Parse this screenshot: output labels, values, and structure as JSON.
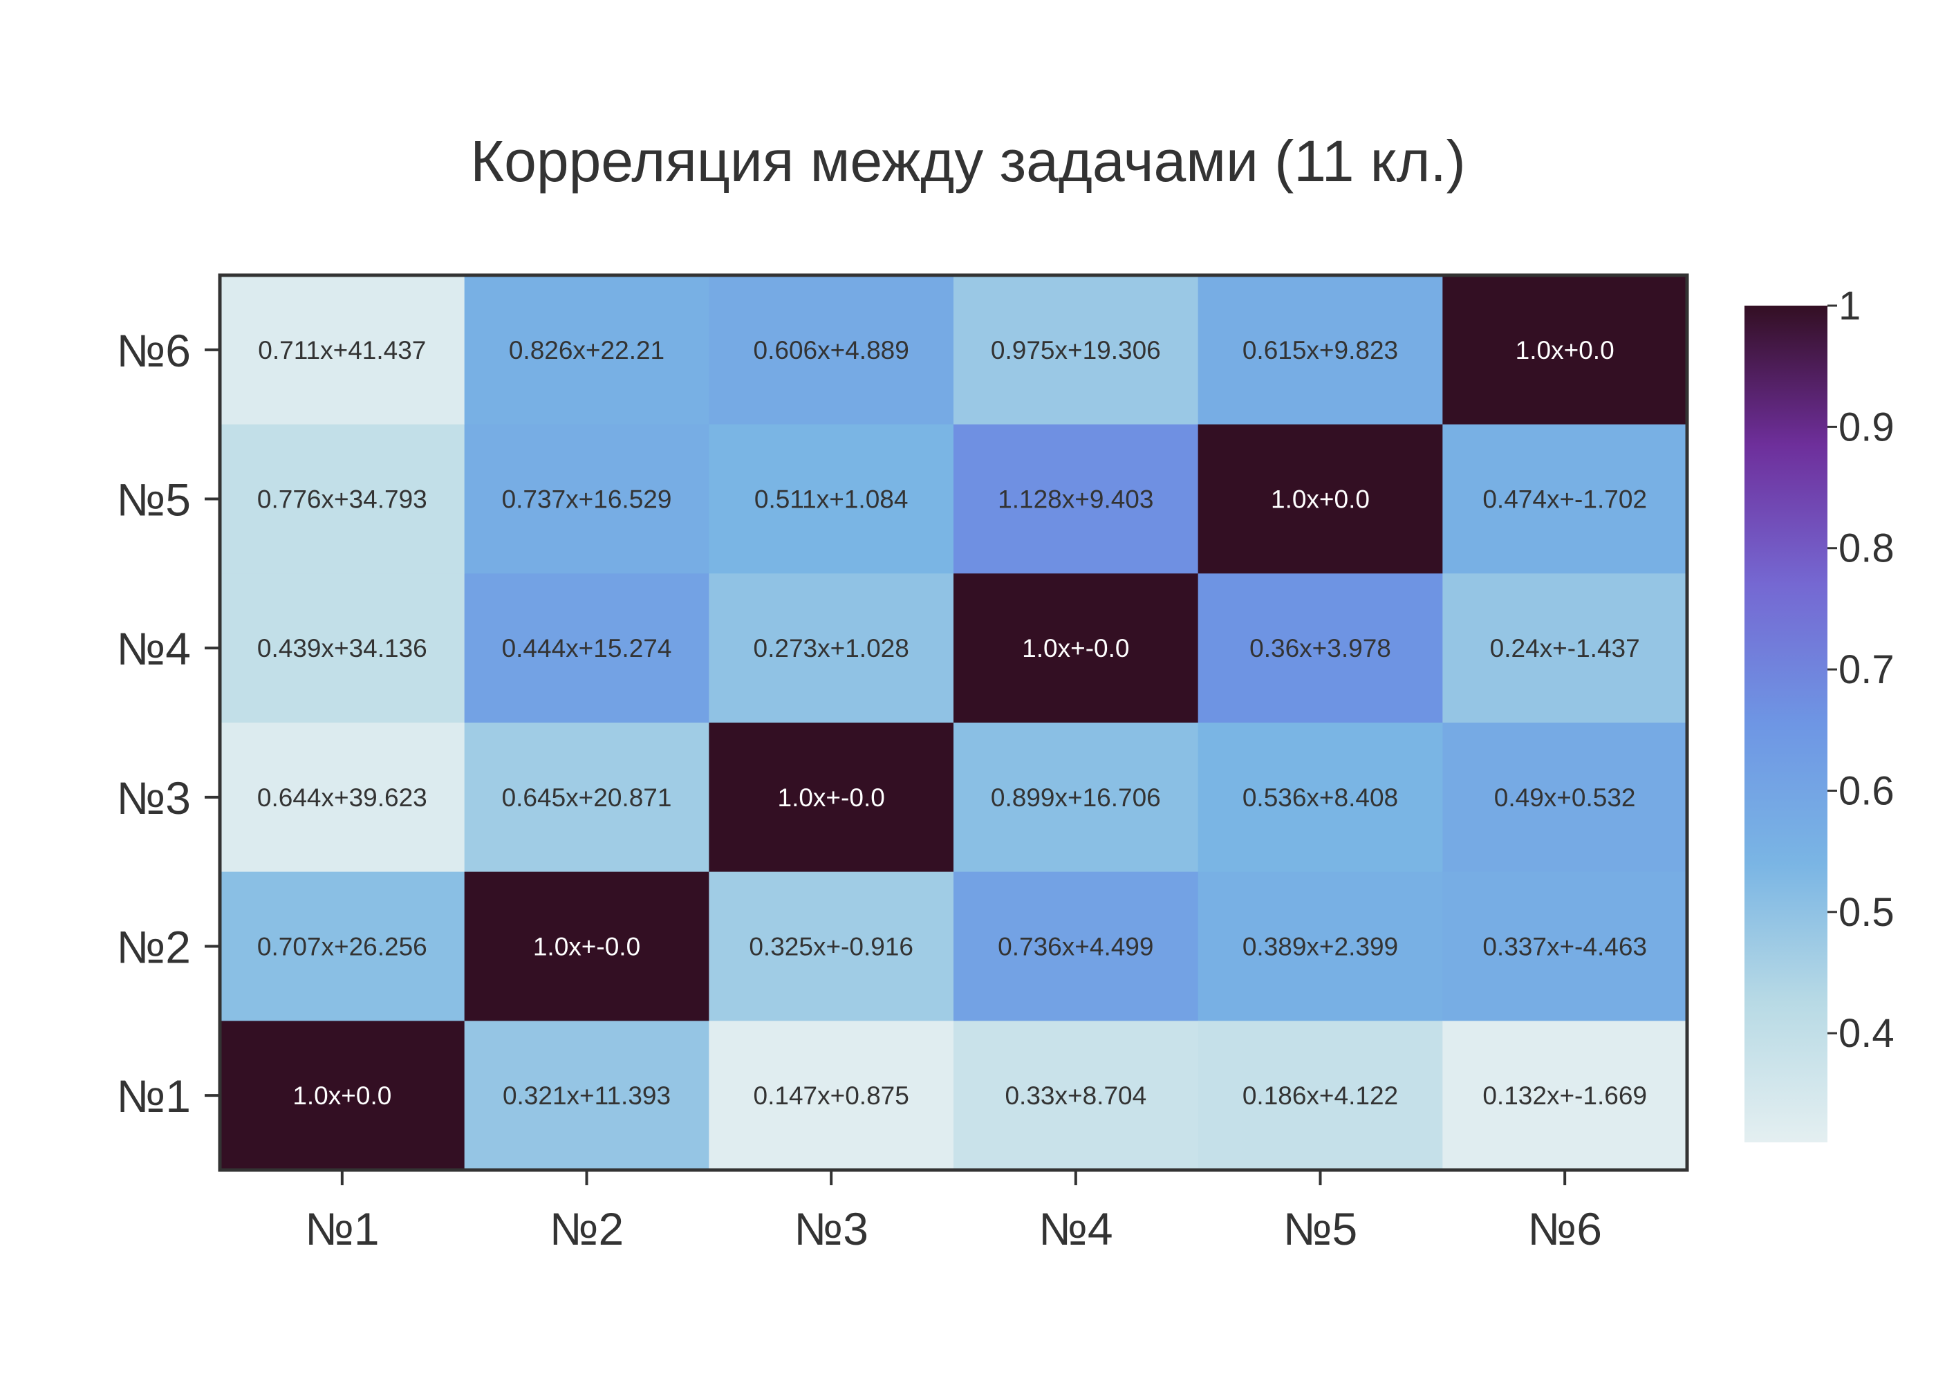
{
  "chart_data": {
    "type": "heatmap",
    "title": "Корреляция между задачами (11 кл.)",
    "xlabel": "",
    "ylabel": "",
    "x_categories": [
      "№1",
      "№2",
      "№3",
      "№4",
      "№5",
      "№6"
    ],
    "y_categories": [
      "№1",
      "№2",
      "№3",
      "№4",
      "№5",
      "№6"
    ],
    "colorbar": {
      "range": [
        0.31,
        1.0
      ],
      "ticks": [
        0.4,
        0.5,
        0.6,
        0.7,
        0.8,
        0.9,
        1
      ],
      "tick_labels": [
        "0.4",
        "0.5",
        "0.6",
        "0.7",
        "0.8",
        "0.9",
        "1"
      ],
      "colors": [
        "#e4eff1",
        "#b8dae5",
        "#7ab5e4",
        "#6e96e4",
        "#7568d2",
        "#6e2f9b",
        "#330f23"
      ]
    },
    "rows": [
      {
        "y": "№6",
        "values": [
          0.33,
          0.56,
          0.58,
          0.48,
          0.57,
          1.0
        ],
        "labels": [
          "0.711x+41.437",
          "0.826x+22.21",
          "0.606x+4.889",
          "0.975x+19.306",
          "0.615x+9.823",
          "1.0x+0.0"
        ]
      },
      {
        "y": "№5",
        "values": [
          0.4,
          0.57,
          0.54,
          0.67,
          1.0,
          0.56
        ],
        "labels": [
          "0.776x+34.793",
          "0.737x+16.529",
          "0.511x+1.084",
          "1.128x+9.403",
          "1.0x+0.0",
          "0.474x+-1.702"
        ]
      },
      {
        "y": "№4",
        "values": [
          0.4,
          0.61,
          0.5,
          1.0,
          0.66,
          0.49
        ],
        "labels": [
          "0.439x+34.136",
          "0.444x+15.274",
          "0.273x+1.028",
          "1.0x+-0.0",
          "0.36x+3.978",
          "0.24x+-1.437"
        ]
      },
      {
        "y": "№3",
        "values": [
          0.33,
          0.47,
          1.0,
          0.51,
          0.54,
          0.58
        ],
        "labels": [
          "0.644x+39.623",
          "0.645x+20.871",
          "1.0x+-0.0",
          "0.899x+16.706",
          "0.536x+8.408",
          "0.49x+0.532"
        ]
      },
      {
        "y": "№2",
        "values": [
          0.51,
          1.0,
          0.47,
          0.61,
          0.56,
          0.57
        ],
        "labels": [
          "0.707x+26.256",
          "1.0x+-0.0",
          "0.325x+-0.916",
          "0.736x+4.499",
          "0.389x+2.399",
          "0.337x+-4.463"
        ]
      },
      {
        "y": "№1",
        "values": [
          1.0,
          0.49,
          0.32,
          0.38,
          0.39,
          0.32
        ],
        "labels": [
          "1.0x+0.0",
          "0.321x+11.393",
          "0.147x+0.875",
          "0.33x+8.704",
          "0.186x+4.122",
          "0.132x+-1.669"
        ]
      }
    ]
  }
}
